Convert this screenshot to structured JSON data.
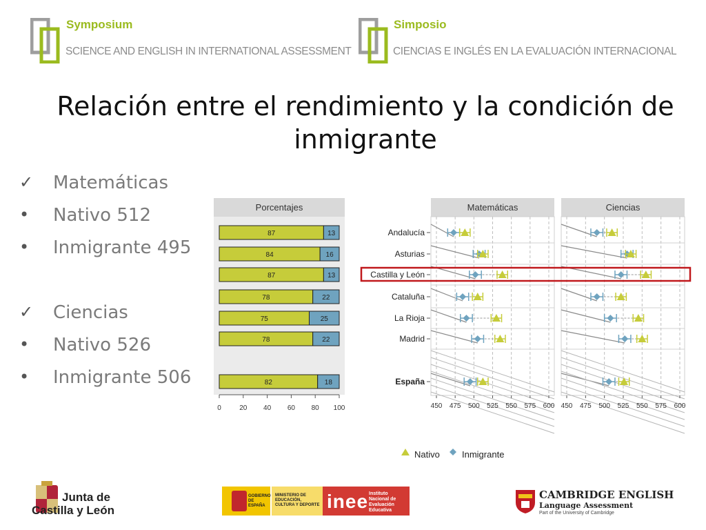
{
  "header": {
    "left": {
      "title": "Symposium",
      "subtitle": "SCIENCE AND ENGLISH IN INTERNATIONAL ASSESSMENT"
    },
    "right": {
      "title": "Simposio",
      "subtitle": "CIENCIAS E INGLÉS EN LA  EVALUACIÓN INTERNACIONAL"
    }
  },
  "title_line1": "Relación entre el rendimiento y la condición de",
  "title_line2": "inmigrante",
  "bullets": [
    {
      "marker": "✓",
      "text": "Matemáticas"
    },
    {
      "marker": "•",
      "text": "Nativo 512"
    },
    {
      "marker": "•",
      "text": "Inmigrante 495"
    },
    {
      "marker": "✓",
      "text": "Ciencias"
    },
    {
      "marker": "•",
      "text": "Nativo 526"
    },
    {
      "marker": "•",
      "text": "Inmigrante 506"
    }
  ],
  "colors": {
    "nativo": "#c6cc3a",
    "inmigrante": "#6fa3bf",
    "highlight": "#c0181c",
    "panel": "#ebebeb",
    "strip": "#d9d9d9"
  },
  "chart_data": [
    {
      "type": "bar",
      "title": "Porcentajes",
      "rows": [
        "Andalucía",
        "Asturias",
        "Castilla y León",
        "Cataluña",
        "La Rioja",
        "Madrid",
        "España"
      ],
      "series": [
        {
          "values": [
            87,
            84,
            87,
            78,
            75,
            78,
            82
          ]
        },
        {
          "values": [
            13,
            16,
            13,
            22,
            25,
            22,
            18
          ]
        }
      ],
      "xticks": [
        "0",
        "20",
        "40",
        "60",
        "80",
        "100"
      ],
      "xlim": [
        0,
        100
      ]
    },
    {
      "type": "scatter",
      "panels": [
        {
          "title": "Matemáticas",
          "nativo": [
            488,
            512,
            538,
            505,
            530,
            535,
            512
          ],
          "inmigrante": [
            473,
            507,
            502,
            485,
            490,
            505,
            495
          ]
        },
        {
          "title": "Ciencias",
          "nativo": [
            510,
            535,
            555,
            522,
            545,
            550,
            526
          ],
          "inmigrante": [
            490,
            530,
            522,
            490,
            508,
            527,
            506
          ]
        }
      ],
      "categories": [
        "Andalucía",
        "Asturias",
        "Castilla y León",
        "Cataluña",
        "La Rioja",
        "Madrid",
        "España"
      ],
      "xticks": [
        "450",
        "475",
        "500",
        "525",
        "550",
        "575",
        "600"
      ],
      "xlim": [
        450,
        600
      ],
      "legend": {
        "nativo": "Nativo",
        "inmigrante": "Inmigrante"
      },
      "highlight": "Castilla y León"
    }
  ],
  "footer": {
    "junta_line1": "Junta de",
    "junta_line2": "Castilla y León",
    "gob": "GOBIERNO DE ESPAÑA",
    "ministerio": "MINISTERIO DE EDUCACIÓN, CULTURA Y DEPORTE",
    "inee": "inee",
    "inee_desc": "Instituto Nacional de Evaluación Educativa",
    "cambridge1": "CAMBRIDGE ENGLISH",
    "cambridge2": "Language Assessment",
    "cambridge3": "Part of the University of Cambridge"
  }
}
